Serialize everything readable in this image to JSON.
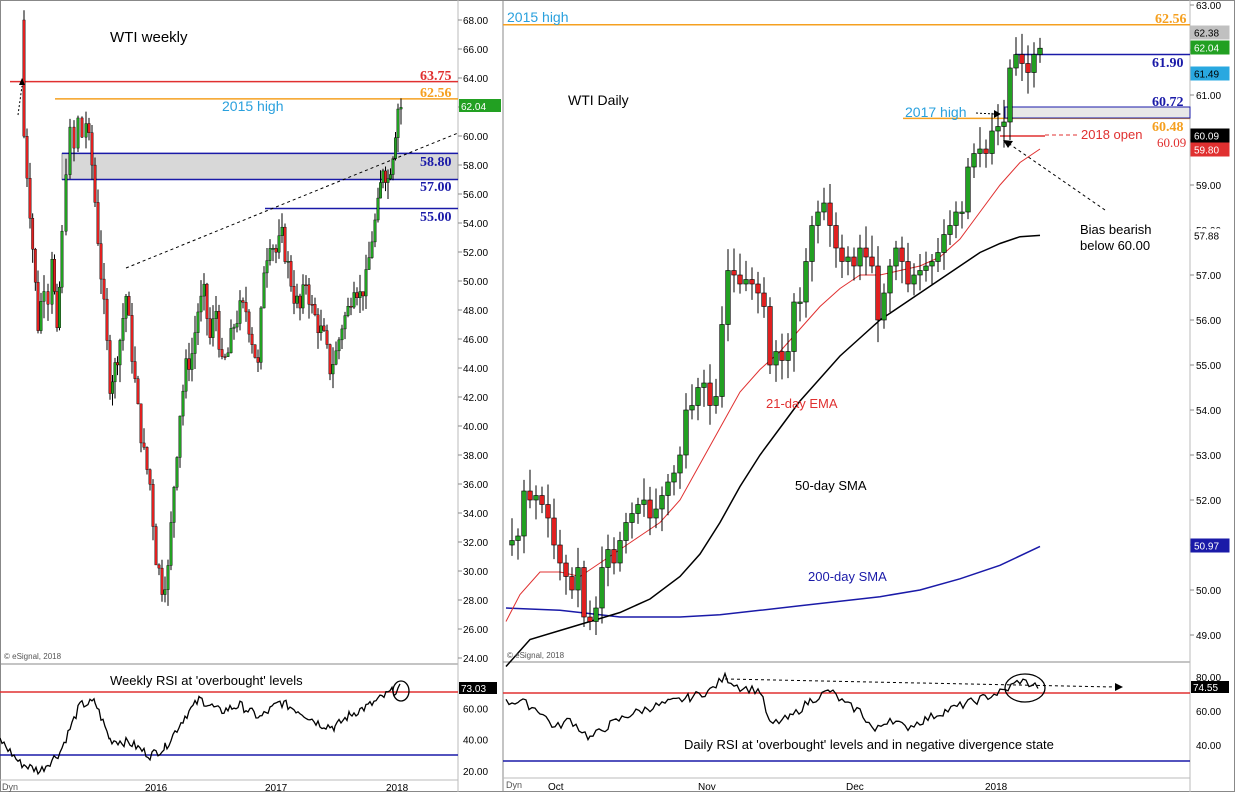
{
  "weekly": {
    "title": "WTI weekly",
    "source": "© eSignal, 2018",
    "dyn_label": "Dyn",
    "price_axis": {
      "min": 24,
      "max": 68,
      "ticks": [
        "24.00",
        "26.00",
        "28.00",
        "30.00",
        "32.00",
        "34.00",
        "36.00",
        "38.00",
        "40.00",
        "42.00",
        "44.00",
        "46.00",
        "48.00",
        "50.00",
        "52.00",
        "54.00",
        "56.00",
        "58.00",
        "60.00",
        "62.00",
        "64.00",
        "66.00",
        "68.00"
      ]
    },
    "time_labels": [
      "2016",
      "2017",
      "2018"
    ],
    "levels": [
      {
        "label": "63.75",
        "value": 63.75,
        "color": "#e03030"
      },
      {
        "label": "62.56",
        "value": 62.56,
        "color": "#f5a020"
      },
      {
        "label": "58.80",
        "value": 58.8,
        "color": "#1a1aa8"
      },
      {
        "label": "57.00",
        "value": 57.0,
        "color": "#1a1aa8"
      },
      {
        "label": "55.00",
        "value": 55.0,
        "color": "#1a1aa8"
      }
    ],
    "high_label": "2015 high",
    "price_badge": {
      "label": "62.04",
      "value": 62.04,
      "color": "#22a022"
    },
    "rsi": {
      "title": "Weekly RSI at 'overbought' levels",
      "ticks": [
        "20.00",
        "40.00",
        "60.00"
      ],
      "badge": "73.03",
      "overbought": 70,
      "oversold": 30
    }
  },
  "daily": {
    "title": "WTI Daily",
    "source": "© eSignal, 2018",
    "dyn_label": "Dyn",
    "price_axis": {
      "min": 48.5,
      "max": 63,
      "ticks": [
        "49.00",
        "50.00",
        "51.00",
        "52.00",
        "53.00",
        "54.00",
        "55.00",
        "56.00",
        "57.00",
        "58.00",
        "59.00",
        "60.00",
        "61.00",
        "62.00",
        "63.00"
      ]
    },
    "time_labels": [
      "Oct",
      "Nov",
      "Dec",
      "2018"
    ],
    "high_label": "2015 high",
    "high_value_label": "62.56",
    "levels": [
      {
        "label": "61.90",
        "value": 61.9,
        "color": "#1a1aa8"
      },
      {
        "label": "60.72",
        "value": 60.72,
        "color": "#1a1aa8"
      },
      {
        "label": "60.48",
        "value": 60.48,
        "color": "#f5a020"
      },
      {
        "label": "60.09",
        "value": 60.09,
        "color": "#e03030"
      }
    ],
    "annotations": {
      "high_2017": "2017 high",
      "open_2018": "2018 open",
      "bias_line1": "Bias bearish",
      "bias_line2": "below 60.00",
      "ema": "21-day EMA",
      "sma50": "50-day SMA",
      "sma200": "200-day SMA"
    },
    "badges": [
      {
        "label": "62.38",
        "value": 62.38,
        "bg": "#c0c0c0",
        "fg": "#000"
      },
      {
        "label": "62.04",
        "value": 62.04,
        "bg": "#22a022",
        "fg": "#fff"
      },
      {
        "label": "61.49",
        "value": 61.49,
        "bg": "#29a8e0",
        "fg": "#000"
      },
      {
        "label": "60.09",
        "value": 60.09,
        "bg": "#000000",
        "fg": "#fff"
      },
      {
        "label": "59.80",
        "value": 59.8,
        "bg": "#e03030",
        "fg": "#fff"
      },
      {
        "label": "57.88",
        "value": 57.88,
        "bg": "#ffffff",
        "fg": "#000"
      },
      {
        "label": "50.97",
        "value": 50.97,
        "bg": "#1a1aa8",
        "fg": "#fff"
      }
    ],
    "rsi": {
      "title": "Daily RSI at 'overbought' levels and in negative divergence state",
      "ticks": [
        "40.00",
        "60.00",
        "80.00"
      ],
      "badge": "74.55",
      "overbought": 70,
      "oversold": 30
    }
  },
  "chart_data": [
    {
      "type": "candlestick",
      "title": "WTI weekly",
      "ylim": [
        24,
        68
      ],
      "x_ticks": [
        "2016",
        "2017",
        "2018"
      ],
      "horizontal_levels": [
        63.75,
        62.56,
        58.8,
        57.0,
        55.0
      ],
      "last_price": 62.04,
      "rsi_last": 73.03
    },
    {
      "type": "candlestick",
      "title": "WTI Daily",
      "ylim": [
        48.5,
        63
      ],
      "x_ticks": [
        "Oct",
        "Nov",
        "Dec",
        "2018"
      ],
      "horizontal_levels": [
        62.56,
        61.9,
        60.72,
        60.48,
        60.09
      ],
      "series": [
        {
          "name": "21-day EMA",
          "last": 59.8
        },
        {
          "name": "50-day SMA",
          "last": 57.88
        },
        {
          "name": "200-day SMA",
          "last": 50.97
        }
      ],
      "last_price": 62.04,
      "rsi_last": 74.55
    }
  ]
}
